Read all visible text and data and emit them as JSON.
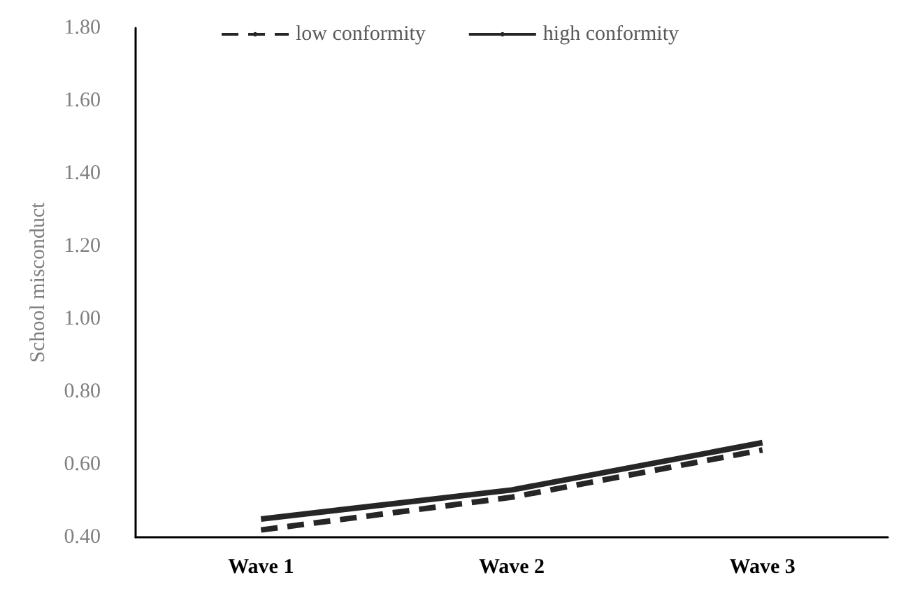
{
  "chart_data": {
    "type": "line",
    "ylabel": "School misconduct",
    "categories": [
      "Wave 1",
      "Wave 2",
      "Wave 3"
    ],
    "series": [
      {
        "name": "low conformity",
        "color": "#262626",
        "values": [
          0.42,
          0.51,
          0.64
        ],
        "line_style": "dashed"
      },
      {
        "name": "high conformity",
        "color": "#262626",
        "values": [
          0.45,
          0.53,
          0.66
        ],
        "line_style": "solid"
      }
    ],
    "ylim": [
      0.4,
      1.8
    ],
    "yticks": [
      {
        "value": 0.4,
        "label": "0.40"
      },
      {
        "value": 0.6,
        "label": "0.60"
      },
      {
        "value": 0.8,
        "label": "0.80"
      },
      {
        "value": 1.0,
        "label": "1.00"
      },
      {
        "value": 1.2,
        "label": "1.20"
      },
      {
        "value": 1.4,
        "label": "1.40"
      },
      {
        "value": 1.6,
        "label": "1.60"
      },
      {
        "value": 1.8,
        "label": "1.80"
      }
    ],
    "grid": false,
    "legend": "top",
    "marker": "none"
  }
}
